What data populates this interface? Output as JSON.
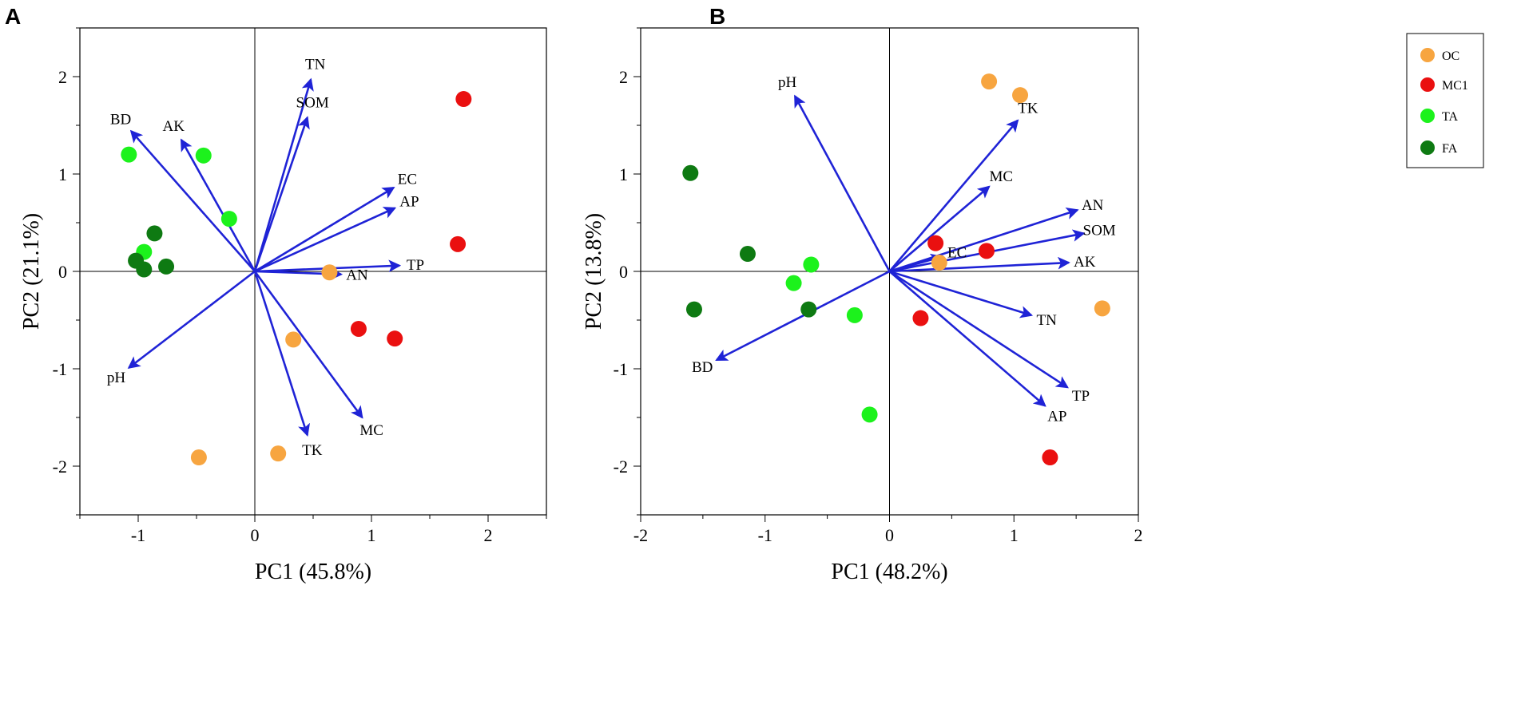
{
  "colors": {
    "OC": "#f7a540",
    "MC1": "#ea1010",
    "TA": "#1cf21c",
    "FA": "#0e7a12",
    "arrow": "#1f23d6"
  },
  "legend": [
    {
      "key": "OC",
      "label": "OC"
    },
    {
      "key": "MC1",
      "label": "MC1"
    },
    {
      "key": "TA",
      "label": "TA"
    },
    {
      "key": "FA",
      "label": "FA"
    }
  ],
  "chart_data": [
    {
      "type": "scatter",
      "panel": "A",
      "xlabel": "PC1 (45.8%)",
      "ylabel": "PC2 (21.1%)",
      "xlim": [
        -1.5,
        2.5
      ],
      "ylim": [
        -2.5,
        2.5
      ],
      "xticks": [
        -1,
        0,
        1,
        2
      ],
      "yticks": [
        -2,
        -1,
        0,
        1,
        2
      ],
      "vectors": [
        {
          "name": "TN",
          "x": 0.48,
          "y": 1.97
        },
        {
          "name": "SOM",
          "x": 0.45,
          "y": 1.58
        },
        {
          "name": "BD",
          "x": -1.06,
          "y": 1.44
        },
        {
          "name": "AK",
          "x": -0.63,
          "y": 1.35
        },
        {
          "name": "EC",
          "x": 1.19,
          "y": 0.86
        },
        {
          "name": "AP",
          "x": 1.2,
          "y": 0.65
        },
        {
          "name": "TP",
          "x": 1.24,
          "y": 0.06
        },
        {
          "name": "AN",
          "x": 0.74,
          "y": -0.03
        },
        {
          "name": "pH",
          "x": -1.08,
          "y": -0.99
        },
        {
          "name": "TK",
          "x": 0.45,
          "y": -1.68
        },
        {
          "name": "MC",
          "x": 0.92,
          "y": -1.5
        }
      ],
      "series": [
        {
          "group": "OC",
          "points": [
            [
              0.64,
              -0.01
            ],
            [
              0.33,
              -0.7
            ],
            [
              -0.48,
              -1.91
            ],
            [
              0.2,
              -1.87
            ]
          ]
        },
        {
          "group": "MC1",
          "points": [
            [
              1.79,
              1.77
            ],
            [
              1.74,
              0.28
            ],
            [
              0.89,
              -0.59
            ],
            [
              1.2,
              -0.69
            ]
          ]
        },
        {
          "group": "TA",
          "points": [
            [
              -1.08,
              1.2
            ],
            [
              -0.44,
              1.19
            ],
            [
              -0.22,
              0.54
            ],
            [
              -0.95,
              0.2
            ]
          ]
        },
        {
          "group": "FA",
          "points": [
            [
              -0.86,
              0.39
            ],
            [
              -1.02,
              0.11
            ],
            [
              -0.95,
              0.02
            ],
            [
              -0.76,
              0.05
            ]
          ]
        }
      ]
    },
    {
      "type": "scatter",
      "panel": "B",
      "xlabel": "PC1 (48.2%)",
      "ylabel": "PC2 (13.8%)",
      "xlim": [
        -2,
        2
      ],
      "ylim": [
        -2.5,
        2.5
      ],
      "xticks": [
        -2,
        -1,
        0,
        1,
        2
      ],
      "yticks": [
        -2,
        -1,
        0,
        1,
        2
      ],
      "vectors": [
        {
          "name": "pH",
          "x": -0.76,
          "y": 1.8
        },
        {
          "name": "TK",
          "x": 1.03,
          "y": 1.55
        },
        {
          "name": "MC",
          "x": 0.8,
          "y": 0.87
        },
        {
          "name": "AN",
          "x": 1.51,
          "y": 0.63
        },
        {
          "name": "SOM",
          "x": 1.56,
          "y": 0.39
        },
        {
          "name": "EC",
          "x": 0.42,
          "y": 0.15
        },
        {
          "name": "AK",
          "x": 1.44,
          "y": 0.09
        },
        {
          "name": "TN",
          "x": 1.14,
          "y": -0.45
        },
        {
          "name": "BD",
          "x": -1.39,
          "y": -0.91
        },
        {
          "name": "TP",
          "x": 1.43,
          "y": -1.19
        },
        {
          "name": "AP",
          "x": 1.25,
          "y": -1.38
        }
      ],
      "series": [
        {
          "group": "OC",
          "points": [
            [
              0.8,
              1.95
            ],
            [
              1.05,
              1.81
            ],
            [
              0.4,
              0.09
            ],
            [
              1.71,
              -0.38
            ]
          ]
        },
        {
          "group": "MC1",
          "points": [
            [
              0.37,
              0.29
            ],
            [
              0.78,
              0.21
            ],
            [
              0.25,
              -0.48
            ],
            [
              1.29,
              -1.91
            ]
          ]
        },
        {
          "group": "TA",
          "points": [
            [
              -0.63,
              0.07
            ],
            [
              -0.77,
              -0.12
            ],
            [
              -0.28,
              -0.45
            ],
            [
              -0.16,
              -1.47
            ]
          ]
        },
        {
          "group": "FA",
          "points": [
            [
              -1.6,
              1.01
            ],
            [
              -1.14,
              0.18
            ],
            [
              -1.57,
              -0.39
            ],
            [
              -0.65,
              -0.39
            ]
          ]
        }
      ]
    }
  ]
}
